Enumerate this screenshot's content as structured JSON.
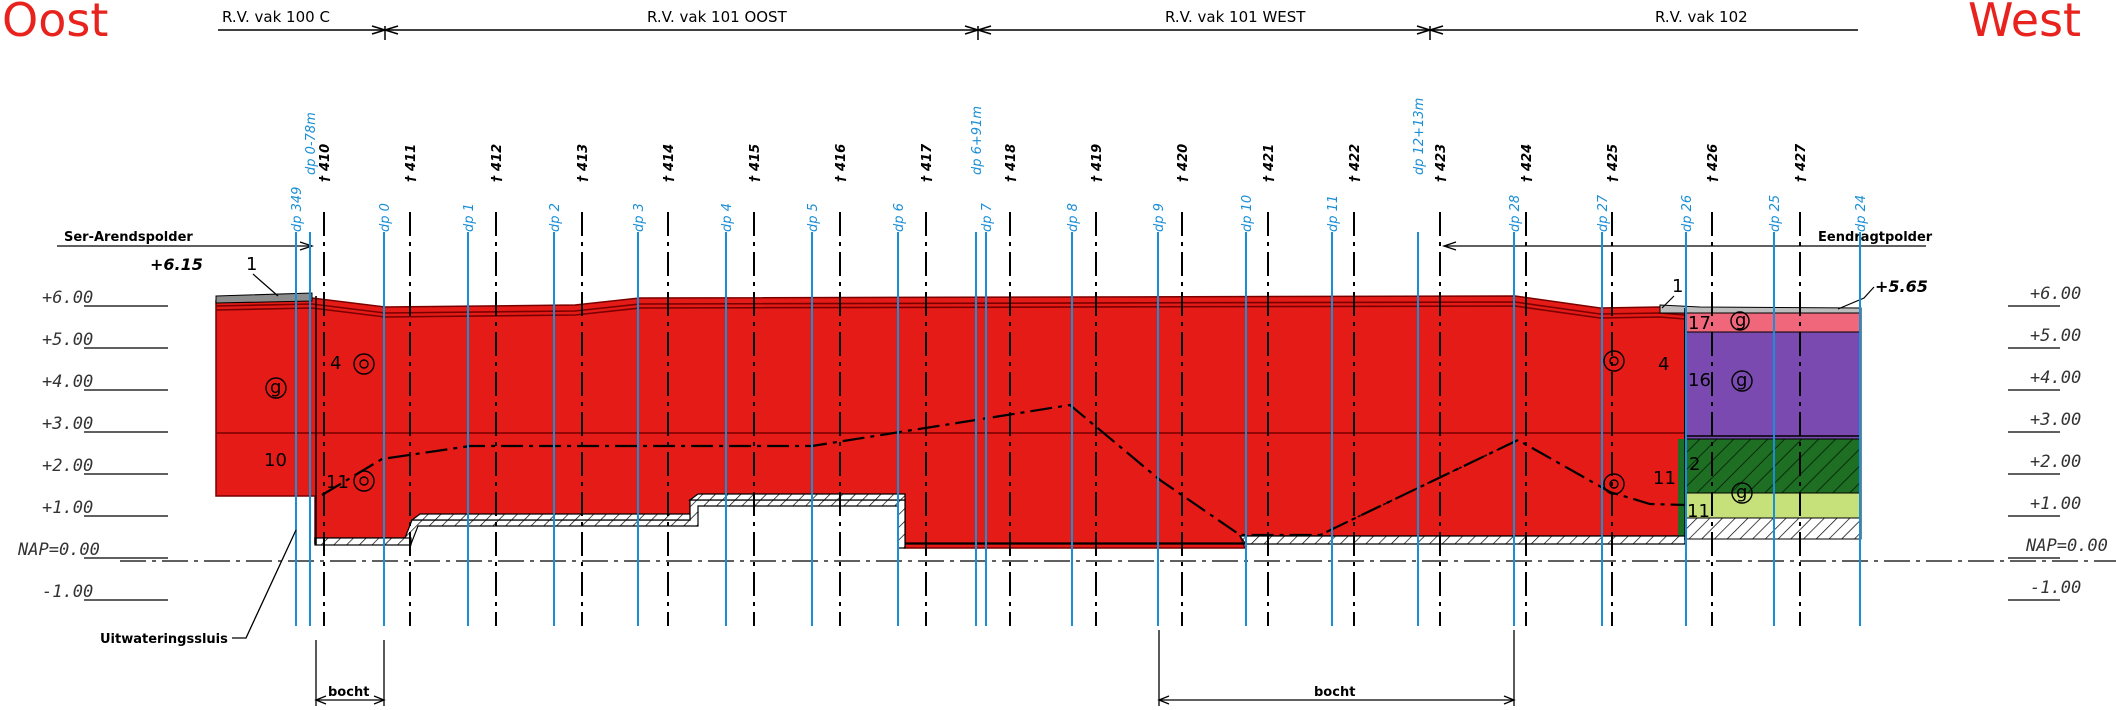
{
  "direction": {
    "left": "Oost",
    "right": "West"
  },
  "sections": [
    {
      "label": "R.V. vak 100  C"
    },
    {
      "label": "R.V. vak 101 OOST"
    },
    {
      "label": "R.V. vak 101 WEST"
    },
    {
      "label": "R.V. vak 102"
    }
  ],
  "polders": {
    "left": "Ser-Arendspolder",
    "right": "Eendragtpolder"
  },
  "levels_left": [
    "+6.00",
    "+5.00",
    "+4.00",
    "+3.00",
    "+2.00",
    "+1.00",
    "NAP=0.00",
    "-1.00"
  ],
  "levels_right": [
    "+6.00",
    "+5.00",
    "+4.00",
    "+3.00",
    "+2.00",
    "+1.00",
    "NAP=0.00",
    "-1.00"
  ],
  "elevations": {
    "left": "+6.15",
    "right": "+5.65"
  },
  "hm_markers": [
    "410",
    "411",
    "412",
    "413",
    "414",
    "415",
    "416",
    "417",
    "418",
    "419",
    "420",
    "421",
    "422",
    "423",
    "424",
    "425",
    "426",
    "427"
  ],
  "dp_markers": [
    "dp 349",
    "dp 0-78m",
    "dp 0",
    "dp 1",
    "dp 2",
    "dp 3",
    "dp 4",
    "dp 5",
    "dp 6",
    "dp 6+91m",
    "dp 7",
    "dp 8",
    "dp 9",
    "dp 10",
    "dp 11",
    "dp 12+13m",
    "dp 28",
    "dp 27",
    "dp 26",
    "dp 25",
    "dp 24"
  ],
  "layer_numbers": {
    "n1a": "1",
    "n1b": "1",
    "n4a": "4",
    "n4b": "4",
    "n10": "10",
    "n11a": "11",
    "n11b": "11",
    "n11c": "11",
    "n16": "16",
    "n17": "17",
    "n2": "2",
    "g": "g"
  },
  "bocht": {
    "left": "bocht",
    "right": "bocht"
  },
  "sluis": "Uitwateringssluis",
  "colors": {
    "dike_fill": "#e41b17",
    "purple_layer": "#7a4ab0",
    "pink_layer": "#f0667a",
    "green_layer": "#1e6e23",
    "lightgreen_layer": "#c6e07a",
    "dp_line": "#1a8fd6",
    "direction_text": "#e8231e"
  }
}
